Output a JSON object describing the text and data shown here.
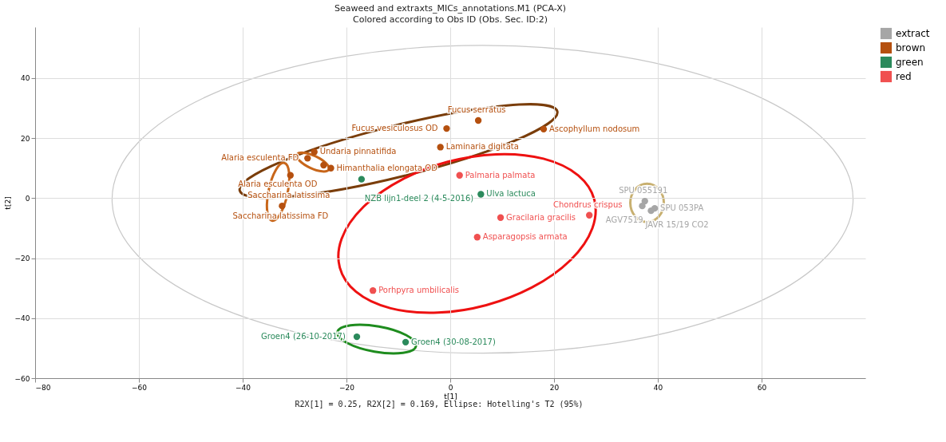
{
  "chart_data": {
    "type": "scatter",
    "title": "Seaweed and extraxts_MICs_annotations.M1 (PCA-X)",
    "subtitle": "Colored according to Obs ID (Obs. Sec. ID:2)",
    "xlabel": "t[1]",
    "ylabel": "t[2]",
    "xlim": [
      -80,
      80
    ],
    "ylim": [
      -60,
      57
    ],
    "xticks": [
      -80,
      -60,
      -40,
      -20,
      0,
      20,
      40,
      60
    ],
    "yticks": [
      -60,
      -40,
      -20,
      0,
      20,
      40
    ],
    "grid": true,
    "legend": "top right",
    "marker": "circle",
    "series": [
      {
        "name": "extract",
        "color": "#a6a6a6",
        "x": [
          37.5,
          37,
          39.4,
          38.7
        ],
        "values": [
          -1,
          -2.6,
          -3.4,
          -4.2
        ]
      },
      {
        "name": "brown",
        "color": "#b5500f",
        "x": [
          -0.7,
          5.4,
          18.0,
          -1.9,
          -26.2,
          -27.5,
          -24.4,
          -23,
          -30.8,
          -32.4
        ],
        "values": [
          23.2,
          25.9,
          23,
          17,
          15.4,
          13.3,
          11,
          10,
          7.6,
          -2.6
        ]
      },
      {
        "name": "green",
        "color": "#2b8a5c",
        "x": [
          -17.1,
          5.9,
          -18,
          -8.6
        ],
        "values": [
          6.3,
          1.3,
          -46.2,
          -48
        ]
      },
      {
        "name": "red",
        "color": "#f05050",
        "x": [
          1.8,
          9.7,
          5.2,
          26.8,
          -14.9
        ],
        "values": [
          7.6,
          -6.5,
          -13,
          -5.7,
          -30.8
        ]
      }
    ],
    "annotations": [
      {
        "text": "SPU 055191",
        "x": 37.5,
        "y": -1
      },
      {
        "text": "JAVR 15/19 CO2",
        "x": 37,
        "y": -2.6
      },
      {
        "text": "SPU 053PA",
        "x": 39.4,
        "y": -3.4
      },
      {
        "text": "AGV7519",
        "x": 38.7,
        "y": -4.2
      },
      {
        "text": "Fucus vesiculosus OD",
        "x": -0.7,
        "y": 23.2
      },
      {
        "text": "Fucus serratus",
        "x": 5.4,
        "y": 25.9
      },
      {
        "text": "Ascophyllum nodosum",
        "x": 18.0,
        "y": 23
      },
      {
        "text": "Laminaria digitata",
        "x": -1.9,
        "y": 17
      },
      {
        "text": "Undaria pinnatifida",
        "x": -26.2,
        "y": 15.4
      },
      {
        "text": "Alaria esculenta FD",
        "x": -27.5,
        "y": 13.3
      },
      {
        "text": "Alaria esculenta OD",
        "x": -24.4,
        "y": 11
      },
      {
        "text": "Himanthalia elongata OD",
        "x": -23,
        "y": 10
      },
      {
        "text": "Saccharina latissima",
        "x": -30.8,
        "y": 7.6
      },
      {
        "text": "Saccharina latissima FD",
        "x": -32.4,
        "y": -2.6
      },
      {
        "text": "NZB lijn1-deel 2 (4-5-2016)",
        "x": -17.1,
        "y": 6.3
      },
      {
        "text": "Ulva lactuca",
        "x": 5.9,
        "y": 1.3
      },
      {
        "text": "Groen4  (26-10-2017)",
        "x": -18,
        "y": -46.2
      },
      {
        "text": "Groen4  (30-08-2017)",
        "x": -8.6,
        "y": -48
      },
      {
        "text": "Palmaria palmata",
        "x": 1.8,
        "y": 7.6
      },
      {
        "text": "Gracilaria gracilis",
        "x": 9.7,
        "y": -6.5
      },
      {
        "text": "Asparagopsis armata",
        "x": 5.2,
        "y": -13
      },
      {
        "text": "Chondrus crispus",
        "x": 26.8,
        "y": -5.7
      },
      {
        "text": "Porhpyra umbilicalis",
        "x": -14.9,
        "y": -30.8
      },
      "R2X[1] = 0.25, R2X[2] = 0.169, Ellipse: Hotelling's T2 (95%)"
    ]
  }
}
